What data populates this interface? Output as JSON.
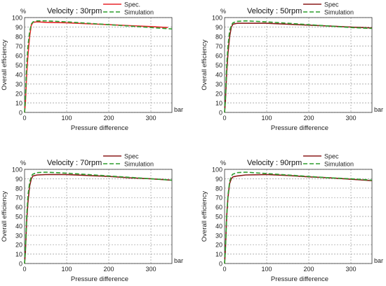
{
  "chart_data": [
    {
      "type": "line",
      "title": "Velocity : 30rpm",
      "xlabel": "Pressure difference",
      "ylabel": "Overall efficiency",
      "x_unit": "bar",
      "y_unit": "%",
      "xlim": [
        0,
        350
      ],
      "ylim": [
        0,
        100
      ],
      "x_ticks": [
        "0",
        "100",
        "200",
        "300"
      ],
      "y_ticks": [
        "0",
        "10",
        "20",
        "30",
        "40",
        "50",
        "60",
        "70",
        "80",
        "90",
        "100"
      ],
      "grid": true,
      "legend_position": "top-right",
      "series": [
        {
          "name": "Spec.",
          "color": "#e8262b",
          "dash": "solid",
          "x": [
            0,
            2,
            5,
            8,
            12,
            16,
            20,
            30,
            50,
            100,
            150,
            200,
            250,
            300,
            340
          ],
          "y": [
            0,
            10,
            40,
            60,
            80,
            92,
            95,
            95.5,
            95,
            94.5,
            93.5,
            92.5,
            91.5,
            90.5,
            89.5
          ]
        },
        {
          "name": "Simulation",
          "color": "#2e9e2e",
          "dash": "dashed",
          "x": [
            0,
            2,
            5,
            8,
            12,
            16,
            20,
            30,
            50,
            100,
            150,
            200,
            250,
            300,
            350
          ],
          "y": [
            0,
            15,
            50,
            70,
            85,
            93,
            95.5,
            96.5,
            96.5,
            95.5,
            94,
            92.5,
            91,
            89.5,
            88
          ]
        }
      ]
    },
    {
      "type": "line",
      "title": "Velocity : 50rpm",
      "xlabel": "Pressure difference",
      "ylabel": "Overall efficiency",
      "x_unit": "bar",
      "y_unit": "%",
      "xlim": [
        0,
        350
      ],
      "ylim": [
        0,
        100
      ],
      "x_ticks": [
        "0",
        "100",
        "200",
        "300"
      ],
      "y_ticks": [
        "0",
        "10",
        "20",
        "30",
        "40",
        "50",
        "60",
        "70",
        "80",
        "90",
        "100"
      ],
      "grid": true,
      "legend_position": "top-right",
      "series": [
        {
          "name": "Spec",
          "color": "#8b1a1a",
          "dash": "solid",
          "x": [
            0,
            2,
            5,
            8,
            12,
            16,
            20,
            30,
            50,
            100,
            150,
            200,
            250,
            300,
            350
          ],
          "y": [
            0,
            12,
            42,
            62,
            80,
            90,
            93,
            94,
            94,
            94,
            93,
            92,
            91,
            90,
            89
          ]
        },
        {
          "name": "Simulation",
          "color": "#2e9e2e",
          "dash": "dashed",
          "x": [
            0,
            2,
            5,
            8,
            12,
            16,
            20,
            30,
            50,
            100,
            150,
            200,
            250,
            300,
            350
          ],
          "y": [
            0,
            15,
            50,
            70,
            86,
            92,
            94.5,
            96,
            96.5,
            95.5,
            94,
            92.5,
            91,
            89.5,
            88.5
          ]
        }
      ]
    },
    {
      "type": "line",
      "title": "Velocity : 70rpm",
      "xlabel": "Pressure difference",
      "ylabel": "Overall efficiency",
      "x_unit": "bar",
      "y_unit": "%",
      "xlim": [
        0,
        350
      ],
      "ylim": [
        0,
        100
      ],
      "x_ticks": [
        "0",
        "100",
        "200",
        "300"
      ],
      "y_ticks": [
        "0",
        "10",
        "20",
        "30",
        "40",
        "50",
        "60",
        "70",
        "80",
        "90",
        "100"
      ],
      "grid": true,
      "legend_position": "top-right",
      "series": [
        {
          "name": "Spec",
          "color": "#8b1a1a",
          "dash": "solid",
          "x": [
            0,
            2,
            5,
            8,
            12,
            16,
            20,
            30,
            50,
            100,
            150,
            200,
            250,
            300,
            350
          ],
          "y": [
            0,
            12,
            45,
            65,
            82,
            90,
            93,
            94,
            94.5,
            94.5,
            93.5,
            92.5,
            91,
            90,
            88.5
          ]
        },
        {
          "name": "Simulation",
          "color": "#2e9e2e",
          "dash": "dashed",
          "x": [
            0,
            2,
            5,
            8,
            12,
            16,
            20,
            30,
            50,
            100,
            150,
            200,
            250,
            300,
            350
          ],
          "y": [
            0,
            15,
            50,
            72,
            86,
            93,
            95,
            96.5,
            97,
            96,
            94.5,
            93,
            91.5,
            90,
            88.5
          ]
        }
      ]
    },
    {
      "type": "line",
      "title": "Velocity : 90rpm",
      "xlabel": "Pressure difference",
      "ylabel": "Overall efficiency",
      "x_unit": "bar",
      "y_unit": "%",
      "xlim": [
        0,
        350
      ],
      "ylim": [
        0,
        100
      ],
      "x_ticks": [
        "0",
        "100",
        "200",
        "300"
      ],
      "y_ticks": [
        "0",
        "10",
        "20",
        "30",
        "40",
        "50",
        "60",
        "70",
        "80",
        "90",
        "100"
      ],
      "grid": true,
      "legend_position": "top-right",
      "series": [
        {
          "name": "Spec",
          "color": "#8b1a1a",
          "dash": "solid",
          "x": [
            0,
            2,
            5,
            8,
            12,
            16,
            20,
            30,
            50,
            100,
            150,
            200,
            250,
            300,
            350
          ],
          "y": [
            0,
            15,
            50,
            70,
            85,
            90,
            92,
            93,
            94,
            94.5,
            93.5,
            92,
            91,
            89.5,
            88
          ]
        },
        {
          "name": "Simulation",
          "color": "#2e9e2e",
          "dash": "dashed",
          "x": [
            0,
            2,
            5,
            8,
            12,
            16,
            20,
            30,
            50,
            100,
            150,
            200,
            250,
            300,
            350
          ],
          "y": [
            0,
            15,
            50,
            72,
            87,
            93,
            95,
            96.5,
            97,
            95.5,
            94,
            92.5,
            91,
            90,
            88.5
          ]
        }
      ]
    }
  ]
}
